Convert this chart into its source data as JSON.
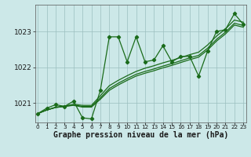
{
  "xlabel": "Graphe pression niveau de la mer (hPa)",
  "bg_color": "#cce8e8",
  "line_color": "#1a6b1a",
  "grid_color": "#9bbfbf",
  "x_ticks": [
    0,
    1,
    2,
    3,
    4,
    5,
    6,
    7,
    8,
    9,
    10,
    11,
    12,
    13,
    14,
    15,
    16,
    17,
    18,
    19,
    20,
    21,
    22,
    23
  ],
  "y_ticks": [
    1021,
    1022,
    1023
  ],
  "ylim": [
    1020.45,
    1023.75
  ],
  "xlim": [
    -0.3,
    23.3
  ],
  "y_main": [
    1020.7,
    1020.85,
    1020.95,
    1020.9,
    1021.05,
    1020.58,
    1020.55,
    1021.35,
    1022.85,
    1022.85,
    1022.15,
    1022.85,
    1022.15,
    1022.2,
    1022.6,
    1022.15,
    1022.3,
    1022.3,
    1021.75,
    1022.45,
    1023.0,
    1023.05,
    1023.5,
    1023.2
  ],
  "y_line1": [
    1020.7,
    1020.8,
    1020.87,
    1020.9,
    1020.93,
    1020.88,
    1020.88,
    1021.1,
    1021.35,
    1021.5,
    1021.63,
    1021.75,
    1021.83,
    1021.9,
    1021.98,
    1022.05,
    1022.13,
    1022.21,
    1022.28,
    1022.48,
    1022.73,
    1022.93,
    1023.18,
    1023.12
  ],
  "y_line2": [
    1020.7,
    1020.8,
    1020.87,
    1020.9,
    1020.94,
    1020.9,
    1020.9,
    1021.14,
    1021.4,
    1021.55,
    1021.68,
    1021.8,
    1021.88,
    1021.95,
    1022.03,
    1022.1,
    1022.18,
    1022.26,
    1022.33,
    1022.53,
    1022.78,
    1022.98,
    1023.23,
    1023.17
  ],
  "y_line3": [
    1020.7,
    1020.8,
    1020.88,
    1020.91,
    1020.96,
    1020.93,
    1020.93,
    1021.2,
    1021.48,
    1021.63,
    1021.76,
    1021.88,
    1021.97,
    1022.04,
    1022.12,
    1022.19,
    1022.27,
    1022.35,
    1022.42,
    1022.62,
    1022.87,
    1023.07,
    1023.32,
    1023.26
  ]
}
